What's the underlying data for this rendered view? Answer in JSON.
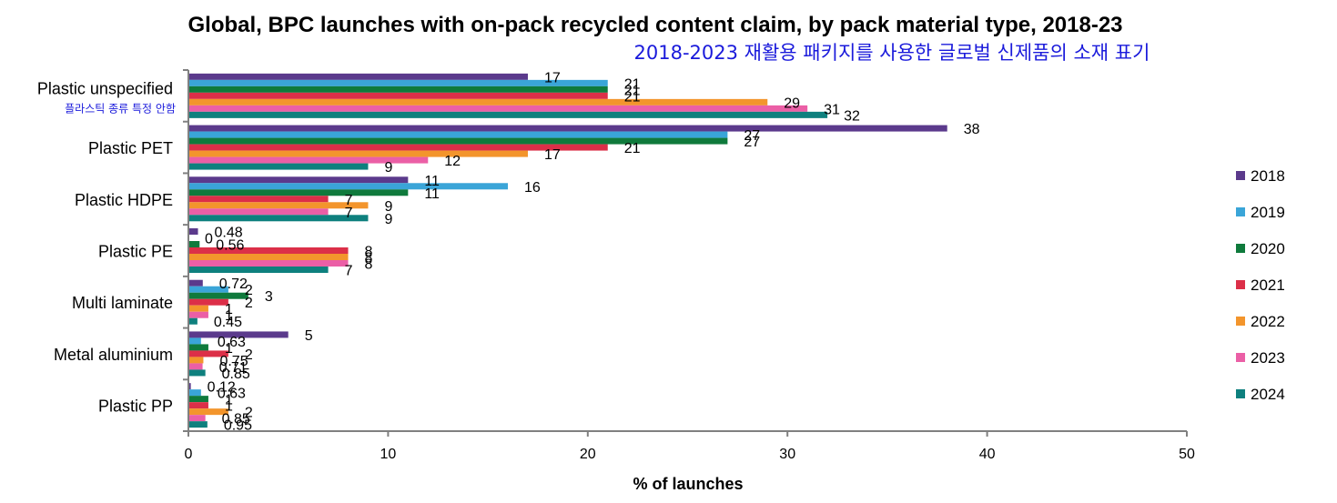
{
  "chart_data": {
    "type": "bar",
    "orientation": "horizontal",
    "title": "Global, BPC launches with on-pack recycled content claim, by pack material type, 2018-23",
    "subtitle": "2018-2023 재활용 패키지를 사용한 글로벌 신제품의 소재 표기",
    "xlabel": "% of launches",
    "ylabel": "",
    "xlim": [
      0,
      50
    ],
    "xticks": [
      0,
      10,
      20,
      30,
      40,
      50
    ],
    "grid": false,
    "legend_position": "right",
    "categories": [
      "Plastic unspecified",
      "Plastic PET",
      "Plastic HDPE",
      "Plastic PE",
      "Multi laminate",
      "Metal aluminium",
      "Plastic PP"
    ],
    "category_annotations": [
      "플라스틱 종류 특정 안함",
      "",
      "",
      "",
      "",
      "",
      ""
    ],
    "series": [
      {
        "name": "2018",
        "color": "#5b3a8c",
        "values": [
          17,
          38,
          11,
          0.48,
          0.72,
          5,
          0.12
        ]
      },
      {
        "name": "2019",
        "color": "#3aa5d8",
        "values": [
          21,
          27,
          16,
          0,
          2,
          0.63,
          0.63
        ]
      },
      {
        "name": "2020",
        "color": "#0f7a3c",
        "values": [
          21,
          27,
          11,
          0.56,
          3,
          1,
          1
        ]
      },
      {
        "name": "2021",
        "color": "#dc2f48",
        "values": [
          21,
          21,
          7,
          8,
          2,
          2,
          1
        ]
      },
      {
        "name": "2022",
        "color": "#f3952c",
        "values": [
          29,
          17,
          9,
          8,
          1,
          0.75,
          2
        ]
      },
      {
        "name": "2023",
        "color": "#eb5fa6",
        "values": [
          31,
          12,
          7,
          8,
          1,
          0.71,
          0.85
        ]
      },
      {
        "name": "2024",
        "color": "#0e807e",
        "values": [
          32,
          9,
          9,
          7,
          0.45,
          0.85,
          0.95
        ]
      }
    ]
  }
}
